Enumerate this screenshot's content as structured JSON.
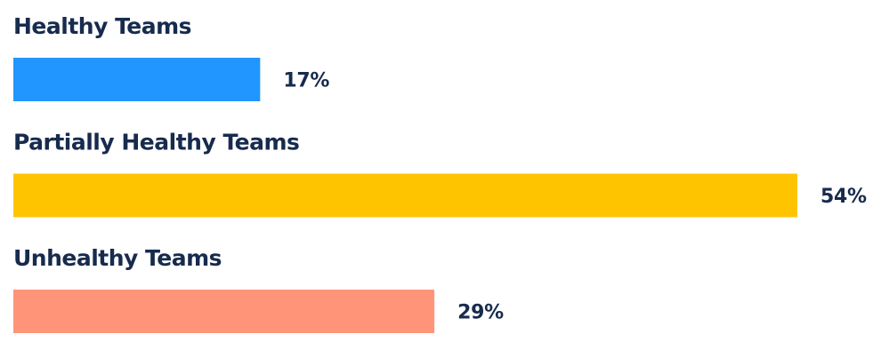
{
  "chart_data": {
    "type": "bar",
    "orientation": "horizontal",
    "categories": [
      "Healthy Teams",
      "Partially Healthy Teams",
      "Unhealthy Teams"
    ],
    "values": [
      17,
      54,
      29
    ],
    "value_labels": [
      "17%",
      "54%",
      "29%"
    ],
    "unit": "%",
    "colors": [
      "#2196ff",
      "#ffc400",
      "#ff9478"
    ],
    "text_color": "#172b4d",
    "grid": false,
    "legend": "none"
  }
}
